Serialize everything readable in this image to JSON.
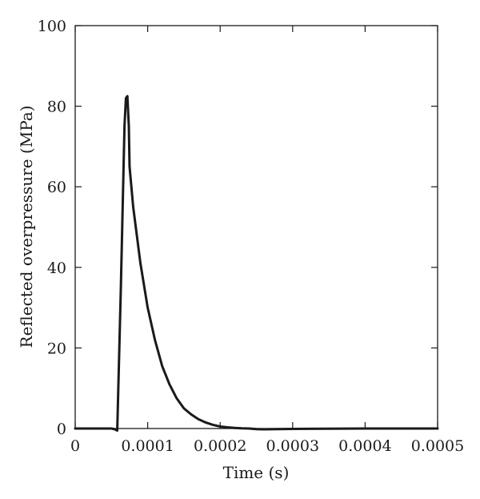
{
  "chart_data": {
    "type": "line",
    "title": "",
    "xlabel": "Time (s)",
    "ylabel": "Reflected overpressure (MPa)",
    "xlim": [
      0,
      0.0005
    ],
    "ylim": [
      0,
      100
    ],
    "x_ticks": [
      0,
      0.0001,
      0.0002,
      0.0003,
      0.0004,
      0.0005
    ],
    "x_tick_labels": [
      "0",
      "0.0001",
      "0.0002",
      "0.0003",
      "0.0004",
      "0.0005"
    ],
    "y_ticks": [
      0,
      20,
      40,
      60,
      80,
      100
    ],
    "y_tick_labels": [
      "0",
      "20",
      "40",
      "60",
      "80",
      "100"
    ],
    "grid": false,
    "series": [
      {
        "color": "#1a1a1a",
        "x": [
          0,
          5e-05,
          5.5e-05,
          5.8e-05,
          6.3e-05,
          6.8e-05,
          7e-05,
          7.2e-05,
          7.4e-05,
          7.5e-05,
          8e-05,
          9e-05,
          0.0001,
          0.00011,
          0.00012,
          0.00013,
          0.00014,
          0.00015,
          0.00016,
          0.00017,
          0.00018,
          0.00019,
          0.0002,
          0.00021,
          0.00022,
          0.00023,
          0.00024,
          0.00025,
          0.00026,
          0.0003,
          0.0004,
          0.0005
        ],
        "y": [
          0,
          0,
          -0.2,
          -0.5,
          35,
          75,
          82,
          82.5,
          75,
          65,
          55,
          41,
          30,
          22,
          15.5,
          11,
          7.5,
          5,
          3.5,
          2.3,
          1.5,
          0.9,
          0.5,
          0.3,
          0.15,
          0.05,
          0,
          -0.15,
          -0.2,
          -0.1,
          0,
          0
        ]
      }
    ]
  }
}
